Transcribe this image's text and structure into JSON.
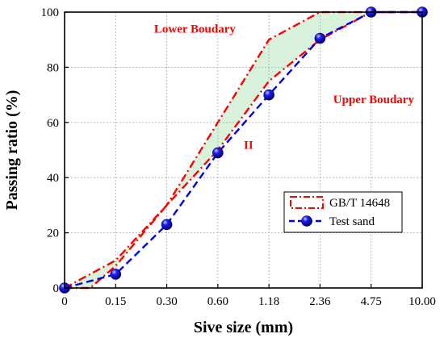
{
  "chart_data": {
    "type": "line",
    "xlabel": "Sive size (mm)",
    "ylabel": "Passing ratio (%)",
    "categories": [
      "0",
      "0.15",
      "0.30",
      "0.60",
      "1.18",
      "2.36",
      "4.75",
      "10.00"
    ],
    "y_ticks": [
      "0",
      "20",
      "40",
      "60",
      "80",
      "100"
    ],
    "ylim": [
      0,
      100
    ],
    "grid": true,
    "legend_position": "lower-right",
    "series": [
      {
        "name": "GB/T 14648",
        "kind": "upper-limit",
        "x": [
          0,
          0.5,
          1,
          2,
          3,
          4,
          5,
          6,
          7
        ],
        "y": [
          0,
          0,
          8,
          30,
          50,
          75,
          90,
          100,
          100
        ],
        "color": "#ff0000"
      },
      {
        "kind": "lower-limit",
        "x": [
          0,
          1,
          2,
          3,
          4,
          5,
          6,
          7
        ],
        "y": [
          0,
          10,
          30,
          60,
          90,
          100,
          100,
          100
        ],
        "color": "#ff0000"
      },
      {
        "name": "Test sand",
        "x": [
          0,
          1,
          2,
          3,
          4,
          5,
          6,
          7
        ],
        "y": [
          0,
          5,
          23,
          49,
          70,
          90.5,
          100,
          100
        ],
        "color": "#0000e0"
      }
    ],
    "band_color": "#d9f2dc",
    "annotations": [
      {
        "text": "Lower Boudary",
        "x": 2.55,
        "y": 92.5,
        "color": "#ff0000"
      },
      {
        "text": "Upper Boudary",
        "x": 6.05,
        "y": 67,
        "color": "#ff0000"
      },
      {
        "text": "II",
        "x": 3.6,
        "y": 50.5,
        "color": "#ff0000"
      }
    ]
  }
}
